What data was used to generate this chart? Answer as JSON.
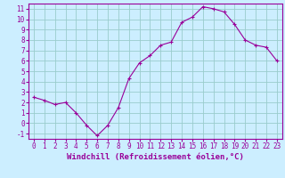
{
  "x": [
    0,
    1,
    2,
    3,
    4,
    5,
    6,
    7,
    8,
    9,
    10,
    11,
    12,
    13,
    14,
    15,
    16,
    17,
    18,
    19,
    20,
    21,
    22,
    23
  ],
  "y": [
    2.5,
    2.2,
    1.8,
    2.0,
    1.0,
    -0.2,
    -1.2,
    -0.2,
    1.5,
    4.3,
    5.8,
    6.5,
    7.5,
    7.8,
    9.7,
    10.2,
    11.2,
    11.0,
    10.7,
    9.5,
    8.0,
    7.5,
    7.3,
    6.0
  ],
  "line_color": "#990099",
  "marker": "+",
  "bg_color": "#cceeff",
  "grid_color": "#99cccc",
  "xlabel": "Windchill (Refroidissement éolien,°C)",
  "xlabel_color": "#990099",
  "xlim": [
    -0.5,
    23.5
  ],
  "ylim": [
    -1.5,
    11.5
  ],
  "yticks": [
    -1,
    0,
    1,
    2,
    3,
    4,
    5,
    6,
    7,
    8,
    9,
    10,
    11
  ],
  "xticks": [
    0,
    1,
    2,
    3,
    4,
    5,
    6,
    7,
    8,
    9,
    10,
    11,
    12,
    13,
    14,
    15,
    16,
    17,
    18,
    19,
    20,
    21,
    22,
    23
  ],
  "tick_label_fontsize": 5.5,
  "xlabel_fontsize": 6.5,
  "spine_color": "#990099",
  "tick_color": "#990099"
}
